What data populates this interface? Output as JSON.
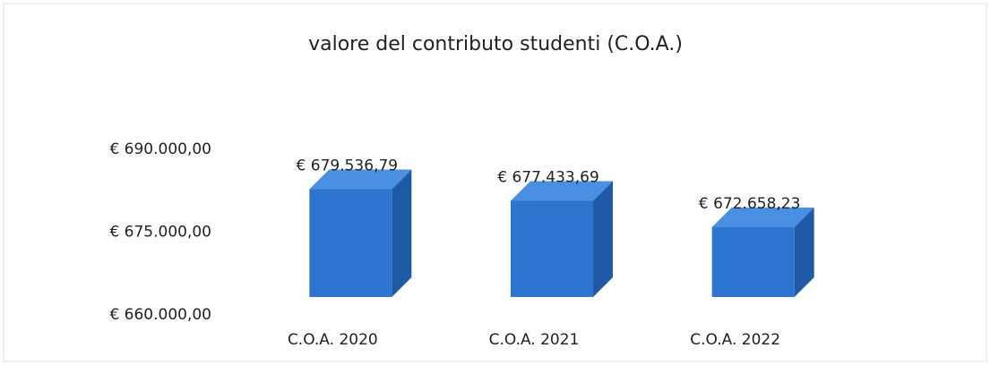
{
  "chart_data": {
    "type": "bar3d",
    "title": "valore del contributo studenti (C.O.A.)",
    "categories": [
      "C.O.A. 2020",
      "C.O.A. 2021",
      "C.O.A. 2022"
    ],
    "values": [
      679536.79,
      677433.69,
      672658.23
    ],
    "value_labels": [
      "€ 679.536,79",
      "€ 677.433,69",
      "€ 672.658,23"
    ],
    "color": "#2e75d0",
    "ylim": [
      660000,
      690000
    ],
    "yticks": [
      {
        "value": 660000,
        "label": "€ 660.000,00"
      },
      {
        "value": 675000,
        "label": "€ 675.000,00"
      },
      {
        "value": 690000,
        "label": "€ 690.000,00"
      }
    ]
  }
}
